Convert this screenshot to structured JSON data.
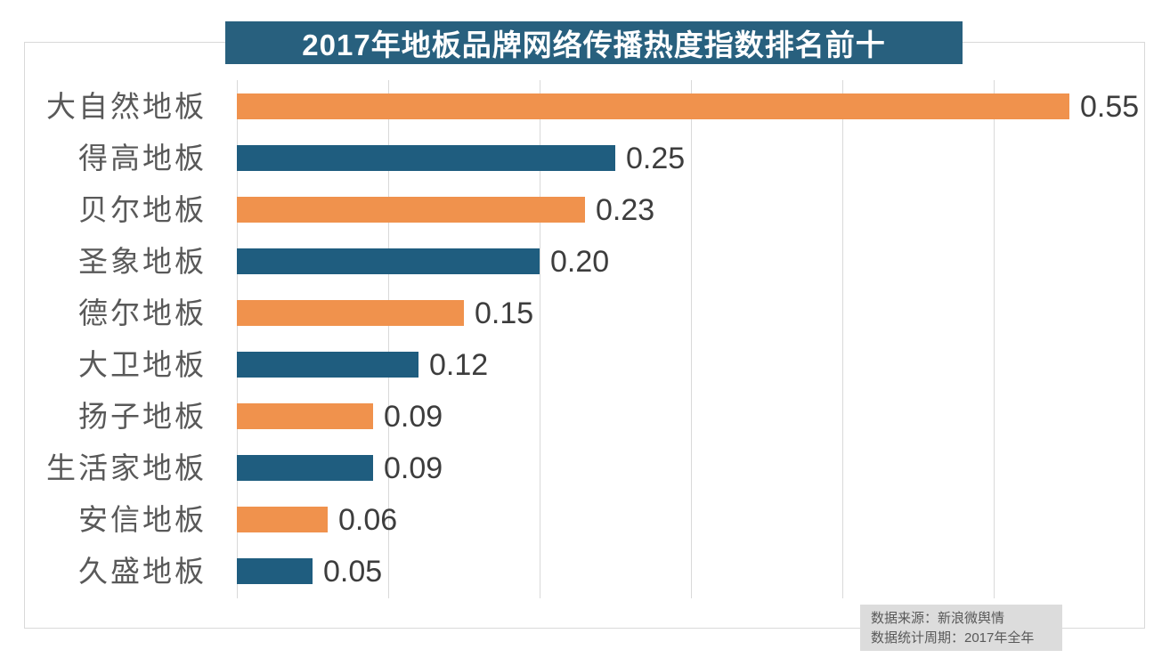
{
  "chart_data": {
    "type": "bar",
    "orientation": "horizontal",
    "title": "2017年地板品牌网络传播热度指数排名前十",
    "categories": [
      "大自然地板",
      "得高地板",
      "贝尔地板",
      "圣象地板",
      "德尔地板",
      "大卫地板",
      "扬子地板",
      "生活家地板",
      "安信地板",
      "久盛地板"
    ],
    "values": [
      0.55,
      0.25,
      0.23,
      0.2,
      0.15,
      0.12,
      0.09,
      0.09,
      0.06,
      0.05
    ],
    "value_labels": [
      "0.55",
      "0.25",
      "0.23",
      "0.20",
      "0.15",
      "0.12",
      "0.09",
      "0.09",
      "0.06",
      "0.05"
    ],
    "xlim": [
      0,
      0.6
    ],
    "gridline_interval": 0.1,
    "grid": true,
    "legend": "none",
    "bar_color_pattern": "alternating"
  },
  "footer": {
    "line1": "数据来源：新浪微舆情",
    "line2": "数据统计周期：2017年全年"
  },
  "colors": {
    "bar_orange": "#f0924d",
    "bar_blue": "#1f5d7f",
    "banner_bg": "#28607e",
    "banner_text": "#ffffff",
    "gridline": "#d9d9d9",
    "category_label": "#595959",
    "value_label": "#3d3d3d",
    "footer_bg": "#dcdcdc",
    "footer_text": "#595959"
  }
}
